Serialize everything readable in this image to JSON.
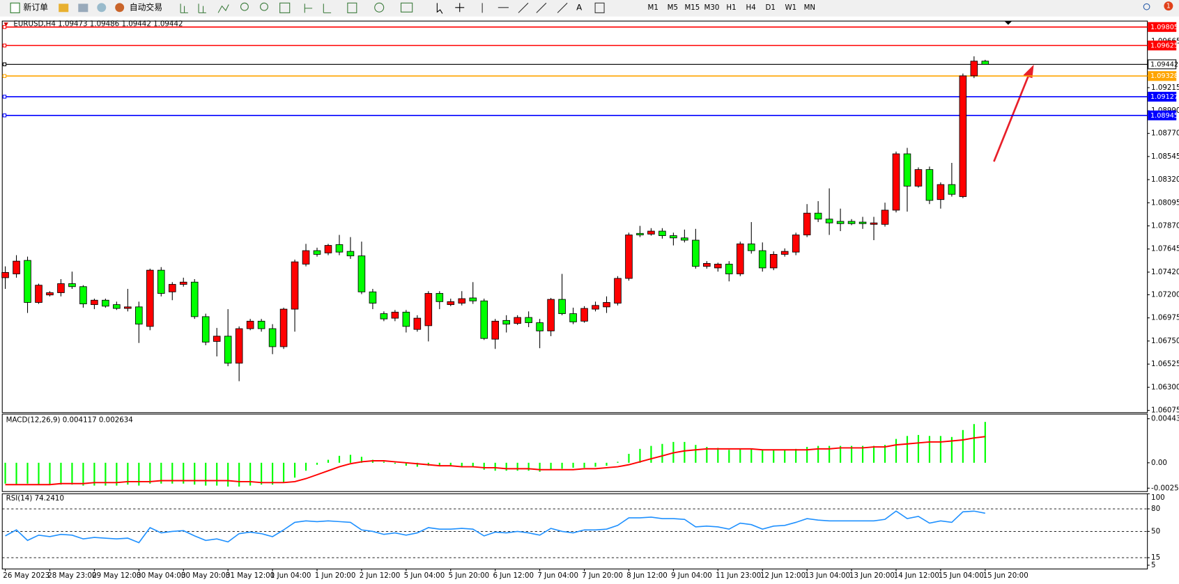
{
  "toolbar": {
    "new_order": "新订单",
    "auto_trading": "自动交易",
    "timeframes": [
      "M1",
      "M5",
      "M15",
      "M30",
      "H1",
      "H4",
      "D1",
      "W1",
      "MN"
    ],
    "alerts": 1
  },
  "chart_data": [
    {
      "type": "candlestick",
      "title": "EURUSD,H4  1.09473 1.09486 1.09442 1.09442",
      "categories": [
        "26 May 2023",
        null,
        null,
        null,
        "28 May 23:00",
        null,
        null,
        null,
        "29 May 12:00",
        null,
        null,
        null,
        "30 May 04:00",
        null,
        null,
        null,
        "30 May 20:00",
        null,
        null,
        null,
        "31 May 12:00",
        null,
        null,
        null,
        "1 Jun 04:00",
        null,
        null,
        null,
        "1 Jun 20:00",
        null,
        null,
        null,
        "2 Jun 12:00",
        null,
        null,
        null,
        "5 Jun 04:00",
        null,
        null,
        null,
        "5 Jun 20:00",
        null,
        null,
        null,
        "6 Jun 12:00",
        null,
        null,
        null,
        "7 Jun 04:00",
        null,
        null,
        null,
        "7 Jun 20:00",
        null,
        null,
        null,
        "8 Jun 12:00",
        null,
        null,
        null,
        "9 Jun 04:00",
        null,
        null,
        null,
        "11 Jun 23:00",
        null,
        null,
        null,
        "12 Jun 12:00",
        null,
        null,
        null,
        "13 Jun 04:00",
        null,
        null,
        null,
        "13 Jun 20:00",
        null,
        null,
        null,
        "14 Jun 12:00",
        null,
        null,
        null,
        "15 Jun 04:00",
        null,
        null,
        null,
        "15 Jun 20:00"
      ],
      "open": [
        1.07366,
        1.07403,
        1.07534,
        1.07125,
        1.07198,
        1.0722,
        1.07308,
        1.07279,
        1.07104,
        1.07147,
        1.07104,
        1.07067,
        1.07082,
        1.06892,
        1.07439,
        1.07228,
        1.07301,
        1.07323,
        1.06987,
        1.06746,
        1.06797,
        1.06534,
        1.0687,
        1.06943,
        1.0687,
        1.06695,
        1.0706,
        1.07498,
        1.07629,
        1.07607,
        1.07688,
        1.07622,
        1.07578,
        1.07228,
        1.07016,
        1.06972,
        1.07031,
        1.06863,
        1.06899,
        1.07213,
        1.07104,
        1.07118,
        1.07169,
        1.0714,
        1.06768,
        1.0695,
        1.06921,
        1.06979,
        1.06928,
        1.06848,
        1.07155,
        1.07016,
        1.06943,
        1.0706,
        1.07082,
        1.07118,
        1.07359,
        1.07797,
        1.0779,
        1.07819,
        1.07775,
        1.07753,
        1.07731,
        1.07476,
        1.07461,
        1.07498,
        1.07403,
        1.07695,
        1.07629,
        1.07461,
        1.07593,
        1.07615,
        1.07782,
        1.07994,
        1.07936,
        1.07914,
        1.07914,
        1.07907,
        1.07885,
        1.07885,
        1.08023,
        1.08571,
        1.08257,
        1.08418,
        1.08126,
        1.08272,
        1.08155,
        1.0933,
        1.09473
      ],
      "high": [
        1.07476,
        1.07585,
        1.07571,
        1.07308,
        1.07235,
        1.07352,
        1.07425,
        1.07293,
        1.07162,
        1.07162,
        1.07133,
        1.07257,
        1.07133,
        1.07454,
        1.07469,
        1.07323,
        1.07366,
        1.07352,
        1.07016,
        1.06877,
        1.0706,
        1.06892,
        1.06965,
        1.06965,
        1.06914,
        1.07074,
        1.07542,
        1.07695,
        1.07658,
        1.07695,
        1.07782,
        1.07761,
        1.07717,
        1.07257,
        1.07038,
        1.07052,
        1.07052,
        1.07001,
        1.07235,
        1.07235,
        1.07162,
        1.07235,
        1.07323,
        1.07162,
        1.06965,
        1.07001,
        1.07001,
        1.07038,
        1.06965,
        1.07169,
        1.07403,
        1.07074,
        1.07089,
        1.07133,
        1.07184,
        1.07381,
        1.07804,
        1.0787,
        1.07848,
        1.07848,
        1.07804,
        1.07834,
        1.07841,
        1.07527,
        1.07512,
        1.07527,
        1.07717,
        1.07907,
        1.07709,
        1.07622,
        1.07651,
        1.07804,
        1.08082,
        1.08111,
        1.08235,
        1.08038,
        1.07936,
        1.07958,
        1.07958,
        1.08096,
        1.08593,
        1.08629,
        1.08439,
        1.08447,
        1.08293,
        1.08483,
        1.09352,
        1.0952,
        1.09486
      ],
      "low": [
        1.07257,
        1.07366,
        1.07023,
        1.07111,
        1.07184,
        1.07184,
        1.07257,
        1.07074,
        1.0706,
        1.07074,
        1.07052,
        1.07038,
        1.06731,
        1.06855,
        1.07184,
        1.07147,
        1.07279,
        1.06965,
        1.06709,
        1.066,
        1.06505,
        1.06359,
        1.06855,
        1.06841,
        1.06622,
        1.06673,
        1.06841,
        1.07476,
        1.07571,
        1.07585,
        1.07585,
        1.07549,
        1.07206,
        1.0706,
        1.06943,
        1.06943,
        1.06833,
        1.06841,
        1.06746,
        1.0706,
        1.07089,
        1.07096,
        1.07111,
        1.0676,
        1.06673,
        1.06833,
        1.06906,
        1.06885,
        1.0668,
        1.06797,
        1.07001,
        1.06914,
        1.06928,
        1.07038,
        1.07023,
        1.07096,
        1.07337,
        1.07761,
        1.07775,
        1.07746,
        1.0768,
        1.07709,
        1.07454,
        1.07454,
        1.07425,
        1.0733,
        1.07381,
        1.076,
        1.07425,
        1.07439,
        1.07571,
        1.07585,
        1.07761,
        1.07907,
        1.07782,
        1.07819,
        1.07877,
        1.07841,
        1.07731,
        1.07863,
        1.08001,
        1.08009,
        1.08242,
        1.08082,
        1.08038,
        1.08155,
        1.0814,
        1.09308,
        1.09442
      ],
      "close": [
        1.07417,
        1.07527,
        1.07125,
        1.07293,
        1.0722,
        1.07308,
        1.07279,
        1.07111,
        1.07147,
        1.07089,
        1.07067,
        1.07082,
        1.06914,
        1.07439,
        1.07213,
        1.07301,
        1.07323,
        1.06987,
        1.06739,
        1.06797,
        1.06534,
        1.0687,
        1.06943,
        1.0687,
        1.06695,
        1.0706,
        1.0752,
        1.07629,
        1.07593,
        1.0768,
        1.07615,
        1.07578,
        1.07228,
        1.07118,
        1.06965,
        1.07031,
        1.06892,
        1.06972,
        1.07213,
        1.07133,
        1.07133,
        1.07162,
        1.0714,
        1.06775,
        1.06943,
        1.06914,
        1.06979,
        1.06928,
        1.06848,
        1.07155,
        1.07016,
        1.06936,
        1.07067,
        1.07096,
        1.07125,
        1.07359,
        1.07782,
        1.07782,
        1.07819,
        1.07775,
        1.07753,
        1.07731,
        1.07476,
        1.07505,
        1.07498,
        1.07403,
        1.07695,
        1.07629,
        1.07461,
        1.07593,
        1.07622,
        1.07782,
        1.07994,
        1.07936,
        1.07899,
        1.07892,
        1.07892,
        1.07892,
        1.07899,
        1.08023,
        1.08571,
        1.08257,
        1.08418,
        1.08118,
        1.08272,
        1.08177,
        1.0933,
        1.09473,
        1.09442
      ],
      "up_color": "#ff0000",
      "down_color": "#00ff00",
      "ylim": [
        1.06053,
        1.09863
      ],
      "yticks": [
        {
          "value": 1.09665,
          "label": "1.09665"
        },
        {
          "value": 1.09215,
          "label": "1.09215"
        },
        {
          "value": 1.0899,
          "label": "1.08990"
        },
        {
          "value": 1.0877,
          "label": "1.08770"
        },
        1.08545,
        {
          "value": 1.0832,
          "label": "1.08320"
        },
        1.08095,
        {
          "value": 1.0787,
          "label": "1.07870"
        },
        1.07645,
        {
          "value": 1.0742,
          "label": "1.07420"
        },
        {
          "value": 1.072,
          "label": "1.07200"
        },
        1.06975,
        {
          "value": 1.0675,
          "label": "1.06750"
        },
        1.06525,
        {
          "value": 1.063,
          "label": "1.06300"
        },
        1.06075
      ],
      "hlines": [
        {
          "value": 1.09805,
          "color": "#ff0000"
        },
        {
          "value": 1.09625,
          "color": "#ff0000"
        },
        {
          "value": 1.09442,
          "color": "#000000"
        },
        {
          "value": 1.09328,
          "color": "#ffa500"
        },
        {
          "value": 1.09127,
          "color": "#0000ff"
        },
        {
          "value": 1.08945,
          "color": "#0000ff"
        }
      ]
    },
    {
      "type": "macd",
      "title": "MACD(12,26,9) 0.004117 0.002634",
      "color": "#00ff00",
      "signal_color": "#ff0000",
      "values": [
        -0.0021,
        -0.0022,
        -0.0021,
        -0.0022,
        -0.0022,
        -0.0022,
        -0.0022,
        -0.0023,
        -0.0023,
        -0.0023,
        -0.0023,
        -0.0022,
        -0.0023,
        -0.0021,
        -0.0021,
        -0.0021,
        -0.0021,
        -0.0022,
        -0.0023,
        -0.0023,
        -0.0024,
        -0.0024,
        -0.0023,
        -0.0022,
        -0.0022,
        -0.002,
        -0.0015,
        -0.0008,
        -0.0002,
        0.0003,
        0.0007,
        0.0008,
        0.0006,
        0.0003,
        0.0001,
        -0.0001,
        -0.0003,
        -0.0004,
        -0.0003,
        -0.0003,
        -0.0003,
        -0.0004,
        -0.0004,
        -0.0007,
        -0.0008,
        -0.0008,
        -0.0008,
        -0.0008,
        -0.0009,
        -0.0007,
        -0.0006,
        -0.0005,
        -0.0005,
        -0.0004,
        -0.0003,
        0.0001,
        0.0009,
        0.0014,
        0.0017,
        0.0019,
        0.0021,
        0.0021,
        0.0018,
        0.0016,
        0.0015,
        0.0013,
        0.0014,
        0.0014,
        0.0013,
        0.0013,
        0.0013,
        0.0014,
        0.0016,
        0.0017,
        0.0017,
        0.0017,
        0.0017,
        0.0017,
        0.0017,
        0.0018,
        0.0024,
        0.0027,
        0.0028,
        0.0027,
        0.0027,
        0.0026,
        0.0033,
        0.0039,
        0.004117
      ],
      "signal": [
        -0.0022,
        -0.0022,
        -0.0022,
        -0.0022,
        -0.0022,
        -0.0021,
        -0.0021,
        -0.0021,
        -0.002,
        -0.002,
        -0.002,
        -0.0019,
        -0.0019,
        -0.0019,
        -0.0018,
        -0.0018,
        -0.0018,
        -0.0018,
        -0.0018,
        -0.0018,
        -0.0018,
        -0.0019,
        -0.0019,
        -0.002,
        -0.002,
        -0.002,
        -0.0019,
        -0.0016,
        -0.0012,
        -0.0008,
        -0.0004,
        -0.0001,
        0.0001,
        0.0002,
        0.0002,
        0.0001,
        0,
        -0.0001,
        -0.0002,
        -0.0003,
        -0.0003,
        -0.0004,
        -0.0004,
        -0.0005,
        -0.0005,
        -0.0006,
        -0.0006,
        -0.0006,
        -0.0007,
        -0.0007,
        -0.0007,
        -0.0007,
        -0.0006,
        -0.0006,
        -0.0005,
        -0.0004,
        -0.0002,
        0.0001,
        0.0004,
        0.0007,
        0.001,
        0.0012,
        0.0013,
        0.0014,
        0.0014,
        0.0014,
        0.0014,
        0.0014,
        0.0013,
        0.0013,
        0.0013,
        0.0013,
        0.0013,
        0.0014,
        0.0014,
        0.0015,
        0.0015,
        0.0015,
        0.0016,
        0.0016,
        0.0018,
        0.0019,
        0.002,
        0.0021,
        0.0021,
        0.0022,
        0.0023,
        0.0025,
        0.002634
      ],
      "ylim": [
        -0.0029,
        0.0049
      ],
      "yticks": [
        0.004435,
        {
          "value": 0,
          "label": "0.00"
        },
        -0.002559
      ]
    },
    {
      "type": "line",
      "title": "RSI(14) 74.2410",
      "color": "#1e90ff",
      "values": [
        44,
        52,
        38,
        45,
        43,
        46,
        45,
        40,
        42,
        41,
        40,
        41,
        35,
        55,
        48,
        50,
        51,
        44,
        38,
        40,
        36,
        47,
        49,
        47,
        43,
        52,
        62,
        64,
        63,
        64,
        63,
        62,
        52,
        50,
        46,
        48,
        45,
        48,
        55,
        53,
        53,
        54,
        53,
        44,
        49,
        48,
        50,
        48,
        45,
        54,
        50,
        48,
        52,
        52,
        53,
        58,
        68,
        68,
        69,
        67,
        67,
        66,
        56,
        57,
        56,
        53,
        61,
        59,
        53,
        57,
        58,
        62,
        67,
        65,
        64,
        64,
        64,
        64,
        64,
        66,
        77,
        67,
        70,
        61,
        64,
        62,
        76,
        77,
        74.241
      ],
      "ylim": [
        0,
        100
      ],
      "yticks": [
        100,
        80,
        50,
        15,
        5
      ],
      "levels": [
        80,
        50,
        15
      ]
    }
  ]
}
